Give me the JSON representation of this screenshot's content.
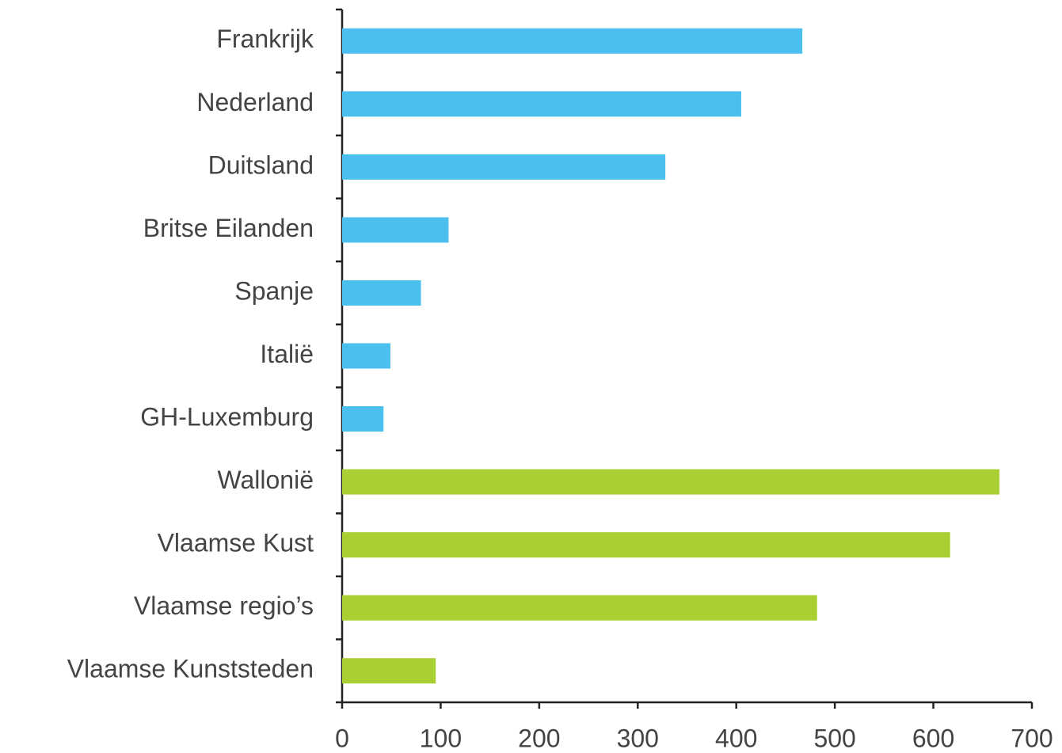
{
  "chart_data": {
    "type": "bar",
    "orientation": "horizontal",
    "categories": [
      "Frankrijk",
      "Nederland",
      "Duitsland",
      "Britse Eilanden",
      "Spanje",
      "Italië",
      "GH-Luxemburg",
      "Wallonië",
      "Vlaamse Kust",
      "Vlaamse regio’s",
      "Vlaamse Kunststeden"
    ],
    "values": [
      467,
      405,
      328,
      108,
      80,
      49,
      42,
      667,
      617,
      482,
      95
    ],
    "colors": [
      "#4bbfee",
      "#4bbfee",
      "#4bbfee",
      "#4bbfee",
      "#4bbfee",
      "#4bbfee",
      "#4bbfee",
      "#a8d032",
      "#a8d032",
      "#a8d032",
      "#a8d032"
    ],
    "xlim": [
      0,
      700
    ],
    "xticks": [
      0,
      100,
      200,
      300,
      400,
      500,
      600,
      700
    ],
    "grid": false
  }
}
